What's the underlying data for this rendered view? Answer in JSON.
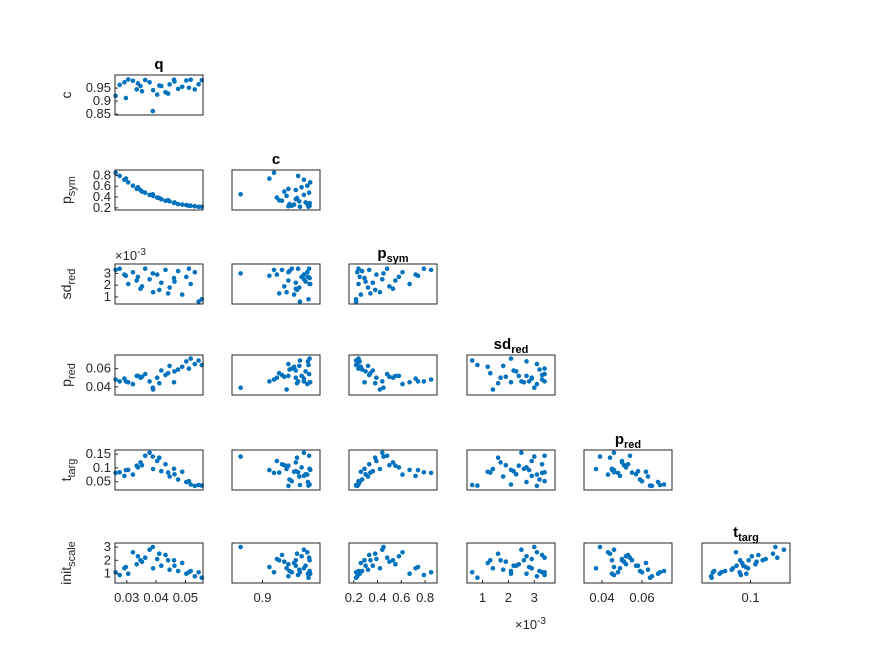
{
  "chart_data": {
    "type": "scatter",
    "figure": "matrix",
    "colors": {
      "points": "#0072BD",
      "axes": "#262626",
      "background": "#ffffff"
    },
    "variables": [
      {
        "key": "q",
        "base": "q",
        "sub": "",
        "lim": [
          0.026,
          0.056
        ],
        "ticks": [
          0.03,
          0.04,
          0.05
        ],
        "tick_labels": [
          "0.03",
          "0.04",
          "0.05"
        ]
      },
      {
        "key": "c",
        "base": "c",
        "sub": "",
        "lim": [
          0.847,
          1.0
        ],
        "ticks": [
          0.85,
          0.9,
          0.95
        ],
        "tick_labels": [
          "0.85",
          "0.9",
          "0.95"
        ]
      },
      {
        "key": "p_sym",
        "base": "p",
        "sub": "sym",
        "lim": [
          0.16,
          0.9
        ],
        "ticks": [
          0.2,
          0.4,
          0.6,
          0.8
        ],
        "tick_labels": [
          "0.2",
          "0.4",
          "0.6",
          "0.8"
        ]
      },
      {
        "key": "sd_red",
        "base": "sd",
        "sub": "red",
        "lim": [
          0.0004,
          0.0038
        ],
        "ticks": [
          0.001,
          0.002,
          0.003
        ],
        "tick_labels": [
          "1",
          "2",
          "3"
        ],
        "exponent": "×10",
        "exponent_power": "-3"
      },
      {
        "key": "p_red",
        "base": "p",
        "sub": "red",
        "lim": [
          0.031,
          0.075
        ],
        "ticks": [
          0.04,
          0.06
        ],
        "tick_labels": [
          "0.04",
          "0.06"
        ]
      },
      {
        "key": "t_targ",
        "base": "t",
        "sub": "targ",
        "lim": [
          0.02,
          0.165
        ],
        "ticks": [
          0.05,
          0.1,
          0.15
        ],
        "tick_labels": [
          "0.05",
          "0.1",
          "0.15"
        ]
      },
      {
        "key": "init_scale",
        "base": "init",
        "sub": "scale",
        "lim": [
          0.3,
          3.3
        ],
        "ticks": [
          1,
          2,
          3
        ],
        "tick_labels": [
          "1",
          "2",
          "3"
        ]
      }
    ],
    "bottom_tick_labels": {
      "q": [
        "0.03",
        "0.04",
        "0.05"
      ],
      "c": [
        "0.9"
      ],
      "p_sym": [
        "0.2",
        "0.4",
        "0.6",
        "0.8"
      ],
      "sd_red": [
        "1",
        "2",
        "3"
      ],
      "p_red": [
        "0.04",
        "0.06"
      ],
      "t_targ": [
        "0.1"
      ]
    },
    "series": [
      {
        "name": "",
        "x": [
          0.0262,
          0.0276,
          0.0292,
          0.0305,
          0.0321,
          0.0334,
          0.0347,
          0.0363,
          0.0378,
          0.039,
          0.0404,
          0.0418,
          0.0432,
          0.0446,
          0.0461,
          0.0475,
          0.0489,
          0.0503,
          0.0518,
          0.0532,
          0.0545,
          0.0556,
          0.0297,
          0.0352,
          0.0411,
          0.0463,
          0.0512,
          0.0389,
          0.0441,
          0.0338
        ],
        "c": [
          0.92,
          0.962,
          0.972,
          0.983,
          0.978,
          0.945,
          0.958,
          0.981,
          0.972,
          0.942,
          0.925,
          0.958,
          0.934,
          0.964,
          0.982,
          0.947,
          0.955,
          0.979,
          0.982,
          0.945,
          0.965,
          0.98,
          0.912,
          0.938,
          0.96,
          0.975,
          0.951,
          0.862,
          0.929,
          0.968
        ],
        "p_sym": [
          0.85,
          0.79,
          0.72,
          0.67,
          0.61,
          0.55,
          0.53,
          0.48,
          0.44,
          0.42,
          0.39,
          0.36,
          0.33,
          0.32,
          0.29,
          0.27,
          0.26,
          0.25,
          0.24,
          0.23,
          0.22,
          0.22,
          0.74,
          0.5,
          0.38,
          0.3,
          0.24,
          0.45,
          0.34,
          0.58
        ],
        "sd_red": [
          0.0033,
          0.0034,
          0.0029,
          0.0021,
          0.0031,
          0.0024,
          0.0017,
          0.0034,
          0.0025,
          0.0014,
          0.0029,
          0.0022,
          0.0033,
          0.0018,
          0.0026,
          0.0032,
          0.0012,
          0.0027,
          0.0021,
          0.0031,
          0.0006,
          0.0008,
          0.0028,
          0.0019,
          0.0016,
          0.0023,
          0.0034,
          0.003,
          0.0013,
          0.0027
        ],
        "p_red": [
          0.048,
          0.046,
          0.049,
          0.045,
          0.043,
          0.052,
          0.05,
          0.054,
          0.046,
          0.037,
          0.05,
          0.058,
          0.053,
          0.063,
          0.045,
          0.059,
          0.062,
          0.068,
          0.071,
          0.065,
          0.069,
          0.064,
          0.046,
          0.051,
          0.044,
          0.057,
          0.06,
          0.039,
          0.055,
          0.052
        ],
        "t_targ": [
          0.082,
          0.084,
          0.071,
          0.093,
          0.076,
          0.108,
          0.12,
          0.144,
          0.155,
          0.096,
          0.125,
          0.088,
          0.113,
          0.069,
          0.097,
          0.058,
          0.086,
          0.049,
          0.04,
          0.035,
          0.038,
          0.036,
          0.092,
          0.11,
          0.137,
          0.077,
          0.052,
          0.141,
          0.083,
          0.102
        ],
        "init_scale": [
          1.1,
          0.9,
          1.4,
          1.0,
          2.6,
          1.7,
          2.0,
          2.2,
          2.8,
          1.4,
          2.1,
          1.6,
          2.4,
          1.3,
          2.0,
          1.2,
          1.8,
          1.0,
          1.2,
          0.8,
          1.1,
          0.7,
          1.5,
          1.9,
          2.5,
          1.6,
          1.1,
          3.0,
          2.0,
          2.3
        ]
      }
    ],
    "grid": false,
    "legend": "none"
  }
}
